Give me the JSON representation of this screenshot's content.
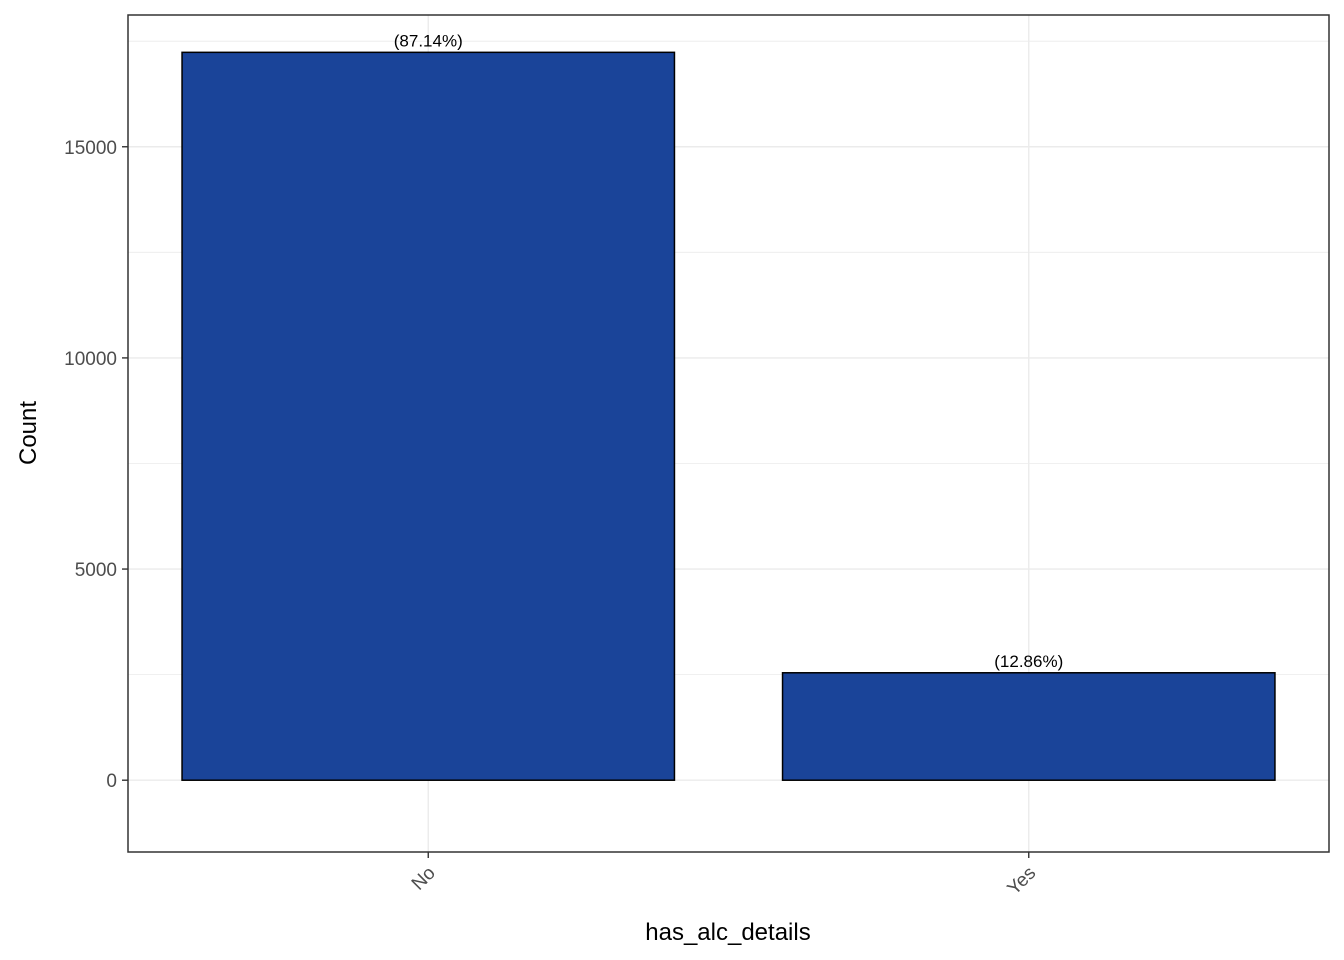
{
  "chart_data": {
    "type": "bar",
    "categories": [
      "No",
      "Yes"
    ],
    "values": [
      17236,
      2544
    ],
    "data_labels": [
      "(87.14%)",
      "(12.86%)"
    ],
    "title": "",
    "xlabel": "has_alc_details",
    "ylabel": "Count",
    "ylim": [
      -1700,
      18120
    ],
    "yticks": [
      0,
      5000,
      10000,
      15000
    ],
    "ytick_labels": [
      "0",
      "5000",
      "10000",
      "15000"
    ],
    "grid": true,
    "legend": "none",
    "colors": {
      "bar_fill": "#1a4499",
      "bar_stroke": "#000000",
      "grid": "#ebebeb",
      "panel_border": "#333333",
      "tick_text": "#4d4d4d"
    }
  }
}
